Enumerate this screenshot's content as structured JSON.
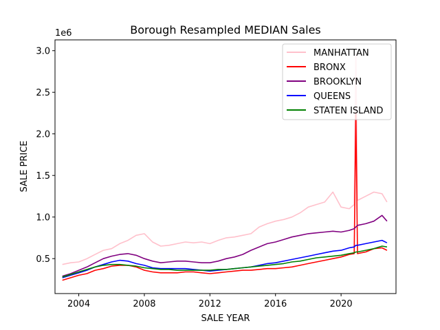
{
  "chart_data": {
    "type": "line",
    "title": "Borough Resampled MEDIAN Sales",
    "xlabel": "SALE YEAR",
    "ylabel": "SALE PRICE",
    "y_offset_label": "1e6",
    "xlim": [
      2002.55,
      2023.35
    ],
    "ylim": [
      0.08,
      3.13
    ],
    "x_ticks": [
      2004,
      2008,
      2012,
      2016,
      2020
    ],
    "x_tick_labels": [
      "2004",
      "2008",
      "2012",
      "2016",
      "2020"
    ],
    "y_ticks": [
      0.5,
      1.0,
      1.5,
      2.0,
      2.5,
      3.0
    ],
    "y_tick_labels": [
      "0.5",
      "1.0",
      "1.5",
      "2.0",
      "2.5",
      "3.0"
    ],
    "grid": false,
    "legend_position": "top-right",
    "x": [
      2003.0,
      2003.5,
      2004.0,
      2004.5,
      2005.0,
      2005.5,
      2006.0,
      2006.5,
      2007.0,
      2007.5,
      2008.0,
      2008.5,
      2009.0,
      2009.5,
      2010.0,
      2010.5,
      2011.0,
      2011.5,
      2012.0,
      2012.5,
      2013.0,
      2013.5,
      2014.0,
      2014.5,
      2015.0,
      2015.5,
      2016.0,
      2016.5,
      2017.0,
      2017.5,
      2018.0,
      2018.5,
      2019.0,
      2019.5,
      2020.0,
      2020.5,
      2020.8,
      2020.9,
      2021.0,
      2021.5,
      2022.0,
      2022.5,
      2022.8
    ],
    "series": [
      {
        "name": "MANHATTAN",
        "color": "#ffc0cb",
        "values": [
          0.43,
          0.45,
          0.46,
          0.5,
          0.55,
          0.6,
          0.62,
          0.68,
          0.72,
          0.78,
          0.8,
          0.7,
          0.65,
          0.66,
          0.68,
          0.7,
          0.69,
          0.7,
          0.68,
          0.72,
          0.75,
          0.76,
          0.78,
          0.8,
          0.88,
          0.92,
          0.95,
          0.97,
          1.0,
          1.05,
          1.12,
          1.15,
          1.18,
          1.3,
          1.12,
          1.1,
          1.15,
          3.0,
          1.2,
          1.25,
          1.3,
          1.28,
          1.18
        ]
      },
      {
        "name": "BRONX",
        "color": "#ff0000",
        "values": [
          0.24,
          0.27,
          0.3,
          0.32,
          0.36,
          0.38,
          0.41,
          0.42,
          0.42,
          0.4,
          0.36,
          0.34,
          0.33,
          0.33,
          0.33,
          0.34,
          0.34,
          0.33,
          0.32,
          0.33,
          0.34,
          0.35,
          0.36,
          0.36,
          0.37,
          0.38,
          0.38,
          0.39,
          0.4,
          0.42,
          0.44,
          0.46,
          0.48,
          0.5,
          0.52,
          0.55,
          0.56,
          2.25,
          0.56,
          0.58,
          0.62,
          0.63,
          0.6
        ]
      },
      {
        "name": "BROOKLYN",
        "color": "#800080",
        "values": [
          0.29,
          0.32,
          0.36,
          0.4,
          0.45,
          0.5,
          0.53,
          0.55,
          0.56,
          0.54,
          0.5,
          0.47,
          0.45,
          0.46,
          0.47,
          0.47,
          0.46,
          0.45,
          0.45,
          0.47,
          0.5,
          0.52,
          0.55,
          0.6,
          0.64,
          0.68,
          0.7,
          0.73,
          0.76,
          0.78,
          0.8,
          0.81,
          0.82,
          0.83,
          0.82,
          0.84,
          0.86,
          0.88,
          0.9,
          0.92,
          0.95,
          1.02,
          0.95
        ]
      },
      {
        "name": "QUEENS",
        "color": "#0000ff",
        "values": [
          0.27,
          0.3,
          0.33,
          0.36,
          0.4,
          0.43,
          0.46,
          0.48,
          0.47,
          0.44,
          0.42,
          0.39,
          0.38,
          0.38,
          0.38,
          0.38,
          0.37,
          0.36,
          0.35,
          0.36,
          0.37,
          0.38,
          0.39,
          0.4,
          0.42,
          0.44,
          0.45,
          0.47,
          0.49,
          0.51,
          0.53,
          0.55,
          0.57,
          0.59,
          0.6,
          0.63,
          0.64,
          0.66,
          0.66,
          0.68,
          0.7,
          0.72,
          0.69
        ]
      },
      {
        "name": "STATEN ISLAND",
        "color": "#008000",
        "values": [
          0.28,
          0.31,
          0.34,
          0.37,
          0.4,
          0.42,
          0.43,
          0.43,
          0.42,
          0.41,
          0.39,
          0.38,
          0.37,
          0.37,
          0.36,
          0.36,
          0.36,
          0.36,
          0.36,
          0.37,
          0.37,
          0.38,
          0.39,
          0.4,
          0.41,
          0.42,
          0.43,
          0.44,
          0.46,
          0.47,
          0.49,
          0.51,
          0.52,
          0.53,
          0.54,
          0.56,
          0.57,
          0.58,
          0.58,
          0.6,
          0.62,
          0.65,
          0.64
        ]
      }
    ]
  }
}
